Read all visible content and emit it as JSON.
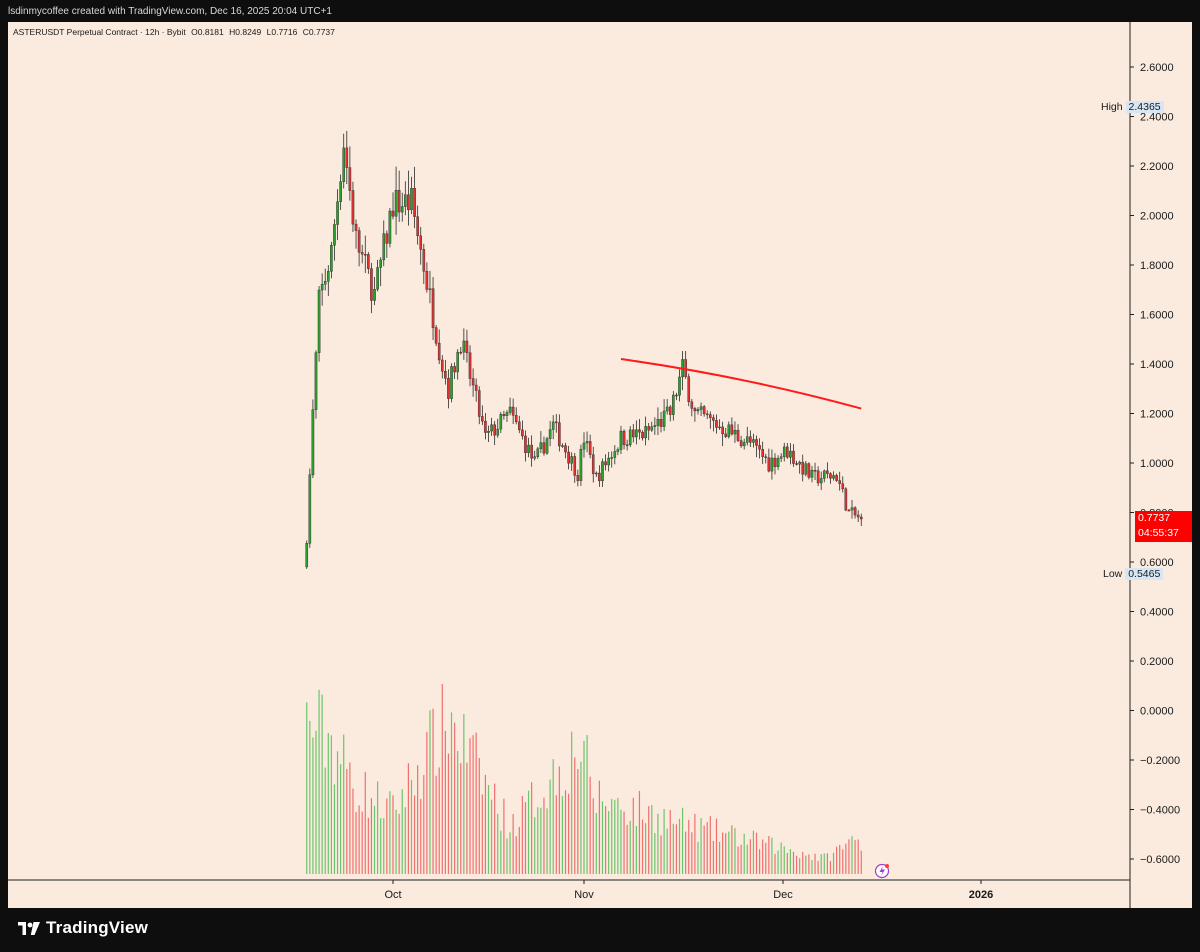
{
  "header": {
    "credit": "lsdinmycoffee created with TradingView.com, Dec 16, 2025 20:04 UTC+1"
  },
  "symbol_info": {
    "name": "ASTERUSDT Perpetual Contract · 12h · Bybit",
    "open": "O0.8181",
    "high": "H0.8249",
    "low": "L0.7716",
    "close": "C0.7737"
  },
  "price_axis": {
    "ticks": [
      "2.6000",
      "2.4000",
      "2.2000",
      "2.0000",
      "1.8000",
      "1.6000",
      "1.4000",
      "1.2000",
      "1.0000",
      "0.8000",
      "0.6000",
      "0.4000",
      "0.2000",
      "0.0000",
      "−0.2000",
      "−0.4000",
      "−0.6000"
    ],
    "high_label": "High",
    "high_value": "2.4365",
    "low_label": "Low",
    "low_value": "0.5465",
    "last_price": "0.7737",
    "countdown": "04:55:37"
  },
  "time_axis": {
    "labels": [
      "Oct",
      "Nov",
      "Dec",
      "2026"
    ]
  },
  "footer": {
    "brand": "TradingView"
  },
  "colors": {
    "background": "#faebde",
    "up": "#2ca02c",
    "down": "#e03131",
    "trendline": "#ff1a1a",
    "last_price_tag": "#ff0000"
  },
  "chart_data": {
    "type": "candlestick",
    "interval": "12h",
    "period": "2025-09-17 to 2025-12-16",
    "price_range": [
      -0.65,
      2.75
    ],
    "keypoints": [
      {
        "date": "2025-09-17",
        "close": 0.7
      },
      {
        "date": "2025-09-18",
        "close": 1.2
      },
      {
        "date": "2025-09-19",
        "close": 1.65
      },
      {
        "date": "2025-09-21",
        "close": 1.85
      },
      {
        "date": "2025-09-23",
        "close": 2.3
      },
      {
        "date": "2025-09-25",
        "close": 1.9
      },
      {
        "date": "2025-09-28",
        "close": 1.68
      },
      {
        "date": "2025-10-01",
        "close": 2.05
      },
      {
        "date": "2025-10-04",
        "close": 2.05
      },
      {
        "date": "2025-10-06",
        "close": 1.8
      },
      {
        "date": "2025-10-09",
        "close": 1.4
      },
      {
        "date": "2025-10-10",
        "close": 1.3
      },
      {
        "date": "2025-10-12",
        "close": 1.5
      },
      {
        "date": "2025-10-16",
        "close": 1.1
      },
      {
        "date": "2025-10-20",
        "close": 1.2
      },
      {
        "date": "2025-10-24",
        "close": 1.0
      },
      {
        "date": "2025-10-27",
        "close": 1.15
      },
      {
        "date": "2025-10-31",
        "close": 0.96
      },
      {
        "date": "2025-11-01",
        "close": 1.1
      },
      {
        "date": "2025-11-03",
        "close": 0.94
      },
      {
        "date": "2025-11-07",
        "close": 1.1
      },
      {
        "date": "2025-11-11",
        "close": 1.12
      },
      {
        "date": "2025-11-15",
        "close": 1.2
      },
      {
        "date": "2025-11-17",
        "close": 1.38
      },
      {
        "date": "2025-11-19",
        "close": 1.2
      },
      {
        "date": "2025-11-23",
        "close": 1.15
      },
      {
        "date": "2025-11-28",
        "close": 1.08
      },
      {
        "date": "2025-12-01",
        "close": 1.0
      },
      {
        "date": "2025-12-04",
        "close": 1.05
      },
      {
        "date": "2025-12-08",
        "close": 0.94
      },
      {
        "date": "2025-12-12",
        "close": 0.95
      },
      {
        "date": "2025-12-14",
        "close": 0.8
      },
      {
        "date": "2025-12-16",
        "close": 0.7737
      }
    ],
    "volume_profile": [
      {
        "date": "2025-09-18",
        "level": 0.95
      },
      {
        "date": "2025-09-21",
        "level": 0.85
      },
      {
        "date": "2025-09-25",
        "level": 0.55
      },
      {
        "date": "2025-10-01",
        "level": 0.4
      },
      {
        "date": "2025-10-10",
        "level": 1.0
      },
      {
        "date": "2025-10-20",
        "level": 0.3
      },
      {
        "date": "2025-11-01",
        "level": 0.85
      },
      {
        "date": "2025-11-02",
        "level": 0.5
      },
      {
        "date": "2025-11-17",
        "level": 0.32
      },
      {
        "date": "2025-12-10",
        "level": 0.1
      },
      {
        "date": "2025-12-15",
        "level": 0.22
      }
    ],
    "trendline": {
      "start": {
        "date": "2025-11-07",
        "price": 1.42
      },
      "end": {
        "date": "2025-12-16",
        "price": 1.22
      }
    },
    "high": 2.4365,
    "low": 0.5465,
    "last": 0.7737
  }
}
